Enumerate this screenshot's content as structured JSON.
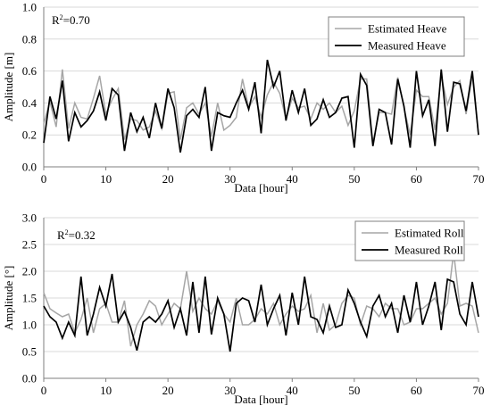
{
  "colors": {
    "estimated": "#a6a6a6",
    "measured": "#000000",
    "grid": "#d9d9d9",
    "axis": "#7f7f7f"
  },
  "chart_data": [
    {
      "type": "line",
      "title": "",
      "xlabel": "Data [hour]",
      "ylabel": "Amplitude [m]",
      "xlim": [
        0,
        70
      ],
      "ylim": [
        0,
        1.0
      ],
      "xticks": [
        0,
        10,
        20,
        30,
        40,
        50,
        60,
        70
      ],
      "yticks": [
        0.0,
        0.2,
        0.4,
        0.6,
        0.8,
        1.0
      ],
      "ytick_labels": [
        "0.0",
        "0.2",
        "0.4",
        "0.6",
        "0.8",
        "1.0"
      ],
      "grid": "horizontal",
      "legend_position": "top-right",
      "annotation": {
        "base": "R",
        "sup": "2",
        "rest": "=0.70"
      },
      "x": [
        0,
        1,
        2,
        3,
        4,
        5,
        6,
        7,
        8,
        9,
        10,
        11,
        12,
        13,
        14,
        15,
        16,
        17,
        18,
        19,
        20,
        21,
        22,
        23,
        24,
        25,
        26,
        27,
        28,
        29,
        30,
        31,
        32,
        33,
        34,
        35,
        36,
        37,
        38,
        39,
        40,
        41,
        42,
        43,
        44,
        45,
        46,
        47,
        48,
        49,
        50,
        51,
        52,
        53,
        54,
        55,
        56,
        57,
        58,
        59,
        60,
        61,
        62,
        63,
        64,
        65,
        66,
        67,
        68,
        69,
        70
      ],
      "series": [
        {
          "name": "Estimated Heave",
          "color_key": "estimated",
          "values": [
            0.27,
            0.41,
            0.25,
            0.61,
            0.24,
            0.4,
            0.31,
            0.3,
            0.43,
            0.57,
            0.33,
            0.42,
            0.49,
            0.17,
            0.3,
            0.29,
            0.23,
            0.25,
            0.35,
            0.24,
            0.46,
            0.47,
            0.17,
            0.37,
            0.4,
            0.33,
            0.4,
            0.19,
            0.4,
            0.23,
            0.26,
            0.31,
            0.55,
            0.37,
            0.44,
            0.31,
            0.45,
            0.53,
            0.46,
            0.3,
            0.43,
            0.37,
            0.38,
            0.3,
            0.4,
            0.36,
            0.4,
            0.34,
            0.38,
            0.26,
            0.35,
            0.55,
            0.55,
            0.15,
            0.34,
            0.34,
            0.33,
            0.56,
            0.37,
            0.2,
            0.48,
            0.44,
            0.44,
            0.23,
            0.57,
            0.39,
            0.5,
            0.54,
            0.33,
            0.57,
            0.2
          ]
        },
        {
          "name": "Measured Heave",
          "color_key": "measured",
          "values": [
            0.15,
            0.44,
            0.3,
            0.54,
            0.16,
            0.34,
            0.25,
            0.29,
            0.35,
            0.47,
            0.29,
            0.49,
            0.45,
            0.1,
            0.34,
            0.22,
            0.31,
            0.18,
            0.4,
            0.24,
            0.49,
            0.37,
            0.09,
            0.32,
            0.36,
            0.31,
            0.5,
            0.1,
            0.34,
            0.32,
            0.31,
            0.4,
            0.48,
            0.36,
            0.53,
            0.21,
            0.67,
            0.5,
            0.6,
            0.29,
            0.48,
            0.34,
            0.49,
            0.26,
            0.3,
            0.42,
            0.31,
            0.34,
            0.43,
            0.44,
            0.12,
            0.58,
            0.51,
            0.13,
            0.36,
            0.34,
            0.14,
            0.55,
            0.38,
            0.12,
            0.6,
            0.32,
            0.42,
            0.13,
            0.61,
            0.22,
            0.53,
            0.52,
            0.35,
            0.6,
            0.2
          ]
        }
      ]
    },
    {
      "type": "line",
      "title": "",
      "xlabel": "Data [hour]",
      "ylabel": "Amplitude [°]",
      "xlim": [
        0,
        70
      ],
      "ylim": [
        0,
        3.0
      ],
      "xticks": [
        0,
        10,
        20,
        30,
        40,
        50,
        60,
        70
      ],
      "yticks": [
        0.0,
        0.5,
        1.0,
        1.5,
        2.0,
        2.5,
        3.0
      ],
      "ytick_labels": [
        "0.0",
        "0.5",
        "1.0",
        "1.5",
        "2.0",
        "2.5",
        "3.0"
      ],
      "grid": "horizontal",
      "legend_position": "top-right",
      "annotation": {
        "base": "R",
        "sup": "2",
        "rest": "=0.32"
      },
      "x": [
        0,
        1,
        2,
        3,
        4,
        5,
        6,
        7,
        8,
        9,
        10,
        11,
        12,
        13,
        14,
        15,
        16,
        17,
        18,
        19,
        20,
        21,
        22,
        23,
        24,
        25,
        26,
        27,
        28,
        29,
        30,
        31,
        32,
        33,
        34,
        35,
        36,
        37,
        38,
        39,
        40,
        41,
        42,
        43,
        44,
        45,
        46,
        47,
        48,
        49,
        50,
        51,
        52,
        53,
        54,
        55,
        56,
        57,
        58,
        59,
        60,
        61,
        62,
        63,
        64,
        65,
        66,
        67,
        68,
        69,
        70
      ],
      "series": [
        {
          "name": "Estimated Roll",
          "color_key": "estimated",
          "values": [
            1.6,
            1.3,
            1.22,
            1.15,
            1.2,
            0.85,
            1.1,
            1.5,
            0.85,
            1.3,
            1.4,
            1.05,
            1.05,
            1.45,
            0.6,
            1.0,
            1.2,
            1.45,
            1.35,
            1.0,
            1.2,
            1.4,
            1.3,
            2.0,
            1.25,
            1.5,
            1.3,
            1.2,
            1.45,
            1.2,
            1.05,
            1.5,
            1.0,
            1.0,
            1.1,
            1.3,
            1.2,
            1.4,
            1.0,
            1.2,
            1.35,
            1.25,
            1.3,
            1.55,
            0.85,
            1.4,
            0.9,
            1.0,
            1.4,
            1.55,
            1.5,
            1.0,
            1.35,
            1.3,
            1.15,
            1.4,
            1.3,
            1.3,
            1.0,
            1.05,
            1.3,
            1.3,
            1.4,
            1.5,
            1.2,
            1.4,
            2.35,
            1.35,
            1.4,
            1.35,
            0.85
          ]
        },
        {
          "name": "Measured Roll",
          "color_key": "measured",
          "values": [
            1.35,
            1.15,
            1.05,
            0.75,
            1.05,
            0.8,
            1.9,
            0.8,
            1.2,
            1.7,
            1.35,
            1.95,
            1.05,
            1.25,
            0.95,
            0.52,
            1.05,
            1.15,
            1.05,
            1.2,
            1.45,
            0.95,
            1.3,
            0.8,
            1.8,
            0.85,
            1.9,
            0.82,
            1.5,
            1.2,
            0.5,
            1.4,
            1.5,
            1.45,
            1.05,
            1.75,
            1.0,
            1.3,
            1.55,
            0.8,
            1.6,
            1.0,
            1.9,
            1.15,
            1.1,
            0.85,
            1.35,
            0.95,
            1.0,
            1.65,
            1.4,
            1.05,
            0.78,
            1.35,
            1.55,
            1.15,
            1.4,
            0.85,
            1.55,
            1.05,
            1.8,
            1.0,
            1.35,
            1.8,
            0.9,
            1.85,
            1.8,
            1.2,
            1.0,
            1.8,
            1.15
          ]
        }
      ]
    }
  ]
}
